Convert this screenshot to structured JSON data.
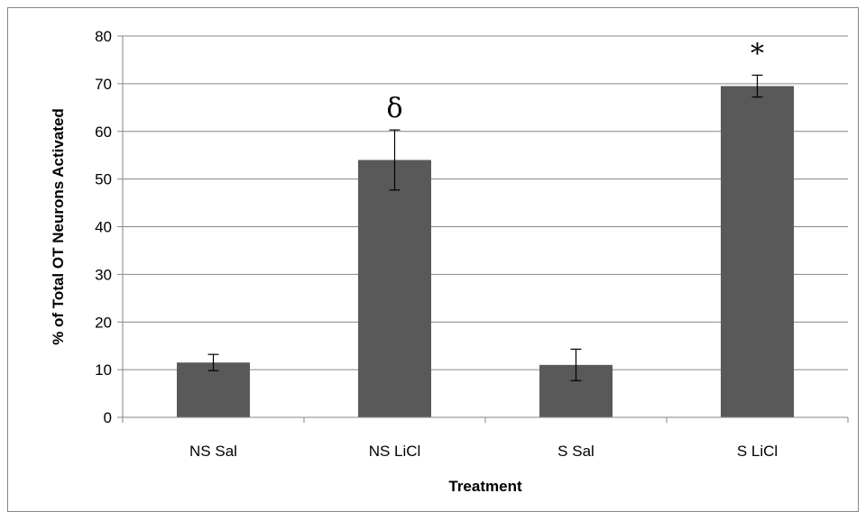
{
  "chart_data": {
    "type": "bar",
    "title": "",
    "xlabel": "Treatment",
    "ylabel": "% of Total OT Neurons Activated",
    "ylim": [
      0,
      80
    ],
    "ytick_step": 10,
    "yticks": [
      "0",
      "10",
      "20",
      "30",
      "40",
      "50",
      "60",
      "70",
      "80"
    ],
    "grid": true,
    "legend": "none",
    "categories": [
      "NS Sal",
      "NS LiCl",
      "S Sal",
      "S LiCl"
    ],
    "series": [
      {
        "values": [
          11.5,
          54,
          11,
          69.5
        ],
        "error": [
          1.7,
          6.3,
          3.3,
          2.3
        ],
        "color": "#595959"
      }
    ],
    "annotations": [
      {
        "category": "NS LiCl",
        "text": "δ"
      },
      {
        "category": "S LiCl",
        "text": "*"
      }
    ]
  }
}
